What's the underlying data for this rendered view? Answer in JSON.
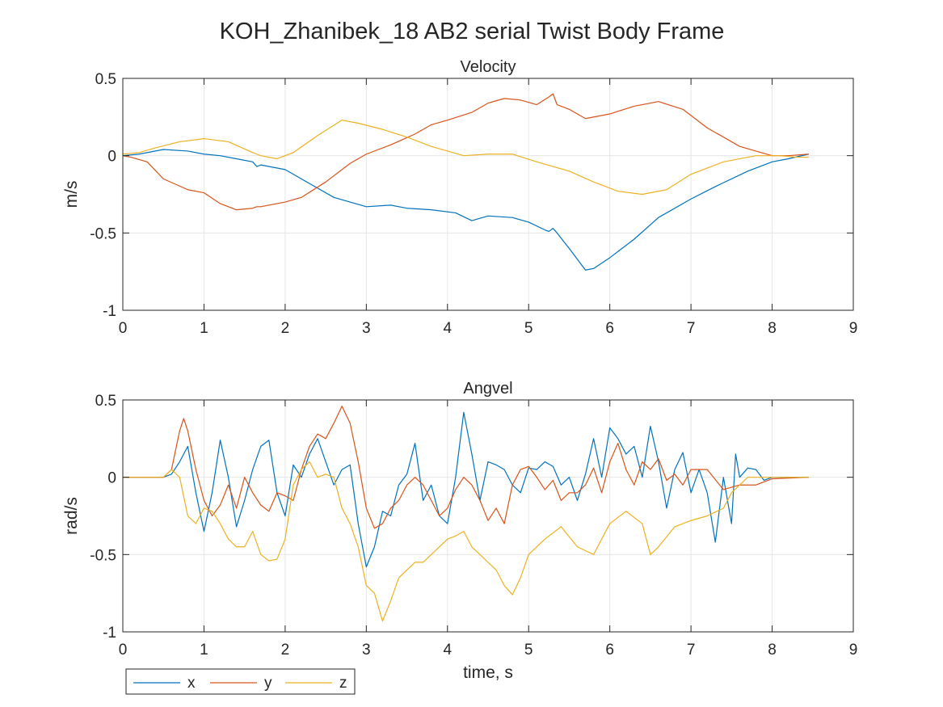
{
  "figure": {
    "title": "KOH_Zhanibek_18 AB2 serial Twist Body Frame",
    "background": "#ffffff",
    "colors": {
      "x": "#0072BD",
      "y": "#D95319",
      "z": "#EDB120",
      "axis": "#262626",
      "grid": "#e6e6e6"
    }
  },
  "legend": {
    "placement": "bottom-left",
    "entries": [
      "x",
      "y",
      "z"
    ]
  },
  "chart_data": [
    {
      "type": "line",
      "title": "Velocity",
      "xlabel": "",
      "ylabel": "m/s",
      "xlim": [
        0,
        9
      ],
      "ylim": [
        -1,
        0.5
      ],
      "xticks": [
        0,
        1,
        2,
        3,
        4,
        5,
        6,
        7,
        8,
        9
      ],
      "yticks": [
        -1,
        -0.5,
        0,
        0.5
      ],
      "xtick_labels": [
        "0",
        "1",
        "2",
        "3",
        "4",
        "5",
        "6",
        "7",
        "8",
        "9"
      ],
      "ytick_labels": [
        "-1",
        "-0.5",
        "0",
        "0.5"
      ],
      "grid": true,
      "series": [
        {
          "name": "x",
          "x": [
            0,
            0.2,
            0.5,
            0.8,
            1.0,
            1.2,
            1.4,
            1.6,
            1.65,
            1.7,
            2.0,
            2.3,
            2.6,
            3.0,
            3.3,
            3.5,
            3.8,
            4.1,
            4.3,
            4.5,
            4.8,
            5.0,
            5.2,
            5.25,
            5.3,
            5.35,
            5.5,
            5.7,
            5.8,
            6.0,
            6.3,
            6.6,
            7.0,
            7.3,
            7.7,
            8.0,
            8.2,
            8.45
          ],
          "values": [
            0,
            0.01,
            0.04,
            0.03,
            0.01,
            0.0,
            -0.02,
            -0.04,
            -0.07,
            -0.06,
            -0.09,
            -0.18,
            -0.27,
            -0.33,
            -0.32,
            -0.34,
            -0.35,
            -0.37,
            -0.42,
            -0.39,
            -0.4,
            -0.43,
            -0.48,
            -0.49,
            -0.47,
            -0.5,
            -0.6,
            -0.74,
            -0.73,
            -0.66,
            -0.54,
            -0.4,
            -0.28,
            -0.2,
            -0.1,
            -0.04,
            -0.02,
            0.01
          ]
        },
        {
          "name": "y",
          "x": [
            0,
            0.1,
            0.3,
            0.5,
            0.8,
            1.0,
            1.2,
            1.4,
            1.6,
            1.65,
            1.7,
            2.0,
            2.2,
            2.5,
            2.8,
            3.0,
            3.3,
            3.6,
            3.8,
            4.0,
            4.3,
            4.5,
            4.7,
            4.9,
            5.1,
            5.25,
            5.3,
            5.35,
            5.5,
            5.7,
            6.0,
            6.3,
            6.6,
            6.9,
            7.2,
            7.6,
            8.0,
            8.2,
            8.45
          ],
          "values": [
            0,
            -0.01,
            -0.04,
            -0.15,
            -0.22,
            -0.24,
            -0.31,
            -0.35,
            -0.34,
            -0.33,
            -0.33,
            -0.3,
            -0.27,
            -0.17,
            -0.05,
            0.01,
            0.07,
            0.14,
            0.2,
            0.23,
            0.28,
            0.34,
            0.37,
            0.36,
            0.33,
            0.38,
            0.4,
            0.33,
            0.3,
            0.24,
            0.27,
            0.32,
            0.35,
            0.3,
            0.18,
            0.06,
            0.0,
            0.0,
            0.01
          ]
        },
        {
          "name": "z",
          "x": [
            0,
            0.2,
            0.4,
            0.7,
            1.0,
            1.3,
            1.6,
            1.65,
            1.7,
            1.9,
            2.1,
            2.4,
            2.7,
            2.9,
            3.2,
            3.5,
            3.8,
            4.2,
            4.5,
            4.8,
            5.1,
            5.5,
            5.8,
            6.1,
            6.4,
            6.7,
            7.0,
            7.4,
            7.8,
            8.1,
            8.3,
            8.45
          ],
          "values": [
            0.01,
            0.02,
            0.05,
            0.09,
            0.11,
            0.09,
            0.02,
            0.01,
            0.0,
            -0.02,
            0.02,
            0.13,
            0.23,
            0.21,
            0.17,
            0.12,
            0.06,
            0.0,
            0.01,
            0.01,
            -0.04,
            -0.1,
            -0.17,
            -0.23,
            -0.25,
            -0.22,
            -0.12,
            -0.04,
            0.0,
            0.0,
            -0.01,
            -0.01
          ]
        }
      ]
    },
    {
      "type": "line",
      "title": "Angvel",
      "xlabel": "time, s",
      "ylabel": "rad/s",
      "xlim": [
        0,
        9
      ],
      "ylim": [
        -1,
        0.5
      ],
      "xticks": [
        0,
        1,
        2,
        3,
        4,
        5,
        6,
        7,
        8,
        9
      ],
      "yticks": [
        -1,
        -0.5,
        0,
        0.5
      ],
      "xtick_labels": [
        "0",
        "1",
        "2",
        "3",
        "4",
        "5",
        "6",
        "7",
        "8",
        "9"
      ],
      "ytick_labels": [
        "-1",
        "-0.5",
        "0",
        "0.5"
      ],
      "grid": true,
      "series": [
        {
          "name": "x",
          "x": [
            0,
            0.5,
            0.6,
            0.7,
            0.8,
            0.9,
            1.0,
            1.1,
            1.2,
            1.3,
            1.4,
            1.5,
            1.6,
            1.7,
            1.8,
            1.9,
            2.0,
            2.1,
            2.2,
            2.3,
            2.4,
            2.5,
            2.6,
            2.7,
            2.8,
            2.9,
            3.0,
            3.1,
            3.2,
            3.3,
            3.4,
            3.5,
            3.6,
            3.7,
            3.8,
            3.9,
            4.0,
            4.1,
            4.2,
            4.3,
            4.4,
            4.5,
            4.6,
            4.7,
            4.8,
            4.9,
            5.0,
            5.1,
            5.2,
            5.3,
            5.4,
            5.5,
            5.6,
            5.7,
            5.8,
            5.9,
            6.0,
            6.1,
            6.2,
            6.3,
            6.4,
            6.5,
            6.6,
            6.7,
            6.8,
            6.9,
            7.0,
            7.1,
            7.2,
            7.3,
            7.4,
            7.5,
            7.55,
            7.6,
            7.7,
            7.8,
            7.9,
            8.0,
            8.45
          ],
          "values": [
            0,
            0,
            0.02,
            0.1,
            0.2,
            -0.1,
            -0.35,
            -0.1,
            0.24,
            0.0,
            -0.32,
            -0.15,
            0.05,
            0.2,
            0.24,
            -0.1,
            -0.25,
            0.08,
            0.0,
            0.15,
            0.25,
            0.1,
            -0.05,
            0.05,
            0.08,
            -0.3,
            -0.58,
            -0.45,
            -0.22,
            -0.25,
            -0.05,
            0.02,
            0.22,
            -0.15,
            -0.05,
            -0.25,
            -0.3,
            0.0,
            0.42,
            0.15,
            -0.15,
            0.1,
            0.08,
            0.05,
            -0.05,
            -0.1,
            0.06,
            0.05,
            0.1,
            0.07,
            -0.05,
            0.0,
            -0.15,
            0.02,
            0.25,
            0.0,
            0.32,
            0.25,
            0.15,
            0.2,
            0.0,
            0.33,
            0.1,
            -0.2,
            0.05,
            0.16,
            -0.1,
            0.05,
            -0.1,
            -0.42,
            0.0,
            -0.3,
            0.15,
            0.0,
            0.06,
            0.05,
            -0.02,
            0.0,
            0.0
          ]
        },
        {
          "name": "y",
          "x": [
            0,
            0.5,
            0.6,
            0.7,
            0.75,
            0.8,
            0.9,
            1.0,
            1.1,
            1.2,
            1.3,
            1.4,
            1.5,
            1.6,
            1.7,
            1.8,
            1.9,
            2.0,
            2.1,
            2.2,
            2.3,
            2.4,
            2.5,
            2.6,
            2.7,
            2.8,
            2.9,
            3.0,
            3.1,
            3.2,
            3.3,
            3.4,
            3.5,
            3.6,
            3.7,
            3.8,
            3.9,
            4.0,
            4.1,
            4.2,
            4.3,
            4.4,
            4.5,
            4.6,
            4.7,
            4.8,
            4.9,
            5.0,
            5.1,
            5.2,
            5.3,
            5.4,
            5.5,
            5.6,
            5.7,
            5.8,
            5.9,
            6.0,
            6.1,
            6.2,
            6.3,
            6.4,
            6.5,
            6.6,
            6.7,
            6.8,
            6.9,
            7.0,
            7.2,
            7.4,
            7.6,
            7.8,
            8.0,
            8.45
          ],
          "values": [
            0,
            0,
            0.05,
            0.3,
            0.38,
            0.3,
            0.05,
            -0.15,
            -0.25,
            -0.18,
            -0.05,
            -0.2,
            0.0,
            -0.1,
            -0.18,
            -0.22,
            -0.1,
            -0.12,
            -0.15,
            0.05,
            0.2,
            0.28,
            0.25,
            0.35,
            0.46,
            0.35,
            0.1,
            -0.2,
            -0.33,
            -0.3,
            -0.2,
            -0.15,
            -0.05,
            0.0,
            -0.05,
            -0.15,
            -0.25,
            -0.2,
            -0.08,
            0.0,
            -0.05,
            -0.15,
            -0.28,
            -0.2,
            -0.3,
            -0.05,
            0.05,
            0.07,
            0.0,
            -0.08,
            -0.02,
            -0.15,
            -0.1,
            -0.1,
            -0.05,
            0.06,
            -0.1,
            0.1,
            0.22,
            0.05,
            -0.05,
            0.1,
            0.05,
            0.12,
            -0.02,
            0.02,
            -0.05,
            0.05,
            0.05,
            -0.08,
            -0.05,
            -0.05,
            -0.01,
            0.0
          ]
        },
        {
          "name": "z",
          "x": [
            0,
            0.5,
            0.6,
            0.7,
            0.8,
            0.9,
            1.0,
            1.1,
            1.2,
            1.3,
            1.4,
            1.5,
            1.6,
            1.7,
            1.8,
            1.9,
            2.0,
            2.1,
            2.2,
            2.3,
            2.4,
            2.5,
            2.6,
            2.7,
            2.8,
            2.9,
            3.0,
            3.1,
            3.2,
            3.3,
            3.4,
            3.5,
            3.6,
            3.7,
            3.8,
            3.9,
            4.0,
            4.1,
            4.2,
            4.3,
            4.4,
            4.5,
            4.6,
            4.7,
            4.8,
            4.9,
            5.0,
            5.2,
            5.4,
            5.6,
            5.8,
            6.0,
            6.2,
            6.4,
            6.5,
            6.6,
            6.8,
            7.0,
            7.2,
            7.4,
            7.5,
            7.6,
            7.7,
            8.0,
            8.45
          ],
          "values": [
            0,
            0,
            0.05,
            0.0,
            -0.25,
            -0.3,
            -0.2,
            -0.22,
            -0.3,
            -0.4,
            -0.45,
            -0.45,
            -0.35,
            -0.5,
            -0.54,
            -0.53,
            -0.4,
            -0.05,
            0.05,
            0.1,
            0.0,
            0.02,
            0.0,
            -0.2,
            -0.3,
            -0.45,
            -0.7,
            -0.75,
            -0.93,
            -0.8,
            -0.65,
            -0.6,
            -0.55,
            -0.55,
            -0.5,
            -0.45,
            -0.4,
            -0.38,
            -0.35,
            -0.45,
            -0.5,
            -0.55,
            -0.6,
            -0.7,
            -0.76,
            -0.65,
            -0.5,
            -0.4,
            -0.32,
            -0.45,
            -0.5,
            -0.3,
            -0.22,
            -0.3,
            -0.5,
            -0.45,
            -0.32,
            -0.28,
            -0.25,
            -0.2,
            -0.1,
            -0.05,
            0.0,
            0.0,
            0.0
          ]
        }
      ]
    }
  ]
}
